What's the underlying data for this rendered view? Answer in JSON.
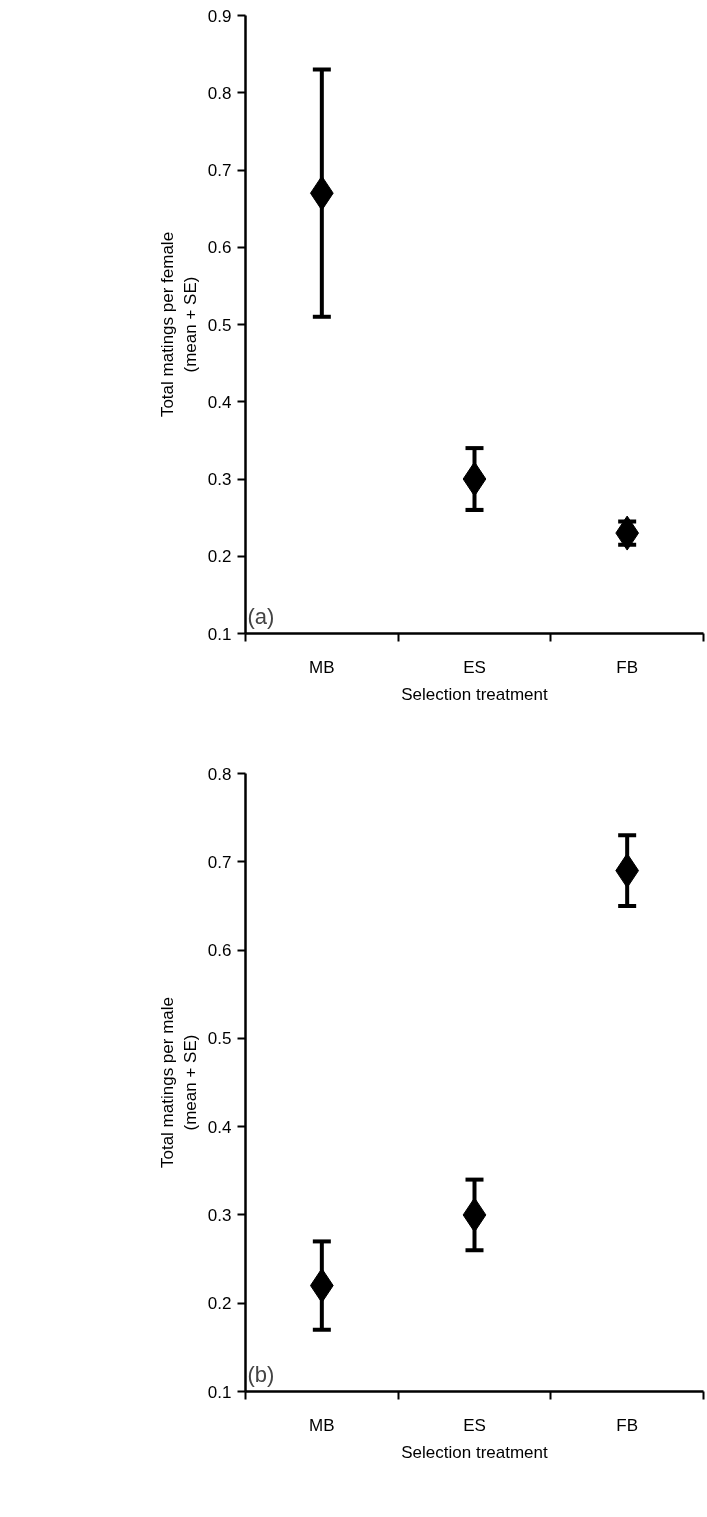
{
  "chart_data": [
    {
      "type": "scatter",
      "annotations": [
        "(a)"
      ],
      "xlabel": "Selection treatment",
      "ylabel": "Total matings per female\n(mean + SE)",
      "categories": [
        "MB",
        "ES",
        "FB"
      ],
      "series": [
        {
          "color": "#000000",
          "values": [
            0.67,
            0.3,
            0.23
          ],
          "errors": [
            0.16,
            0.04,
            0.015
          ]
        }
      ],
      "ylim": [
        0.1,
        0.9
      ],
      "yticks": [
        0.1,
        0.2,
        0.3,
        0.4,
        0.5,
        0.6,
        0.7,
        0.8,
        0.9
      ],
      "marker": "diamond",
      "grid": false
    },
    {
      "type": "scatter",
      "annotations": [
        "(b)"
      ],
      "xlabel": "Selection treatment",
      "ylabel": "Total matings per male\n(mean + SE)",
      "categories": [
        "MB",
        "ES",
        "FB"
      ],
      "series": [
        {
          "color": "#000000",
          "values": [
            0.22,
            0.3,
            0.69
          ],
          "errors": [
            0.05,
            0.04,
            0.04
          ]
        }
      ],
      "ylim": [
        0.1,
        0.8
      ],
      "yticks": [
        0.1,
        0.2,
        0.3,
        0.4,
        0.5,
        0.6,
        0.7,
        0.8
      ],
      "marker": "diamond",
      "grid": false
    }
  ]
}
